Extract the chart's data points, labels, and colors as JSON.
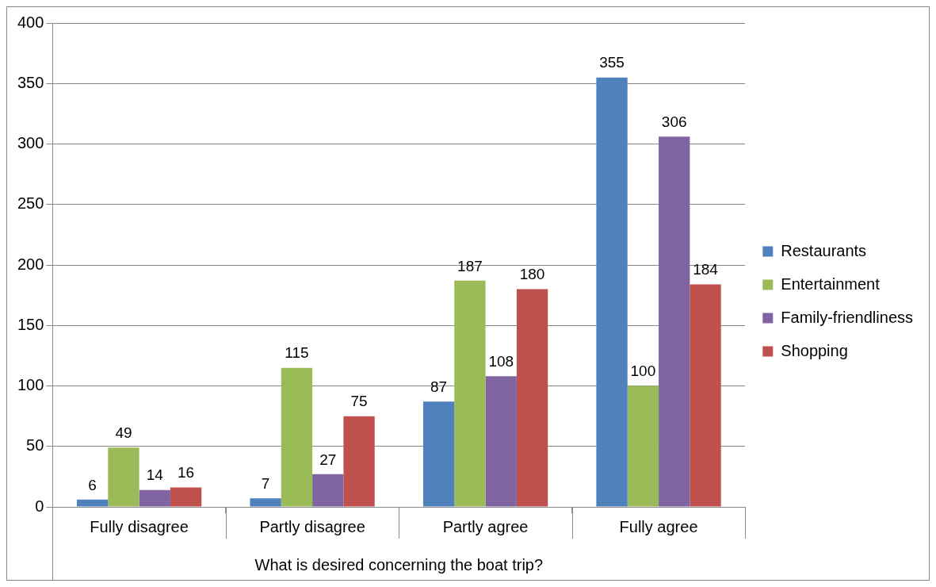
{
  "chart_data": {
    "type": "bar",
    "xlabel": "What is desired concerning the boat trip?",
    "categories": [
      "Fully disagree",
      "Partly disagree",
      "Partly agree",
      "Fully agree"
    ],
    "series": [
      {
        "name": "Restaurants",
        "color": "#4f81bd",
        "values": [
          6,
          7,
          87,
          355
        ]
      },
      {
        "name": "Entertainment",
        "color": "#9bbb59",
        "values": [
          49,
          115,
          187,
          100
        ]
      },
      {
        "name": "Family-friendliness",
        "color": "#8064a2",
        "values": [
          14,
          27,
          108,
          306
        ]
      },
      {
        "name": "Shopping",
        "color": "#c0504d",
        "values": [
          16,
          75,
          180,
          184
        ]
      }
    ],
    "ylim": [
      0,
      400
    ],
    "yticks": [
      0,
      50,
      100,
      150,
      200,
      250,
      300,
      350,
      400
    ],
    "grid": "y",
    "legend": "right",
    "data_labels": true
  }
}
